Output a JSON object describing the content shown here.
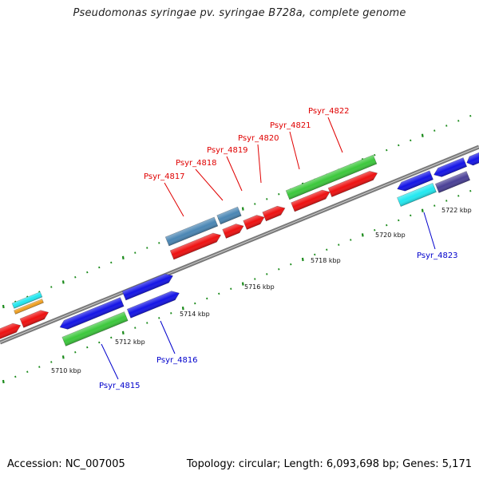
{
  "title": "Pseudomonas syringae pv. syringae B728a, complete genome",
  "footer": {
    "accession": "Accession: NC_007005",
    "summary": "Topology: circular; Length: 6,093,698 bp; Genes: 5,171"
  },
  "colors": {
    "background": "#ffffff",
    "backbone": "#8a8a8a",
    "upper_label": "#e00000",
    "lower_label": "#0000cc",
    "tick": "#1a8a1a",
    "red": "#ee1111",
    "blue": "#1414e6",
    "green": "#3cc83c",
    "steelblue": "#4a86b4",
    "cyan": "#22e8f0",
    "orange": "#f0a020",
    "purple": "#4a4096"
  },
  "scale_labels": [
    "5710 kbp",
    "5712 kbp",
    "5714 kbp",
    "5716 kbp",
    "5718 kbp",
    "5720 kbp",
    "5722 kbp"
  ],
  "upper_labels": [
    "Psyr_4817",
    "Psyr_4818",
    "Psyr_4819",
    "Psyr_4820",
    "Psyr_4821",
    "Psyr_4822"
  ],
  "lower_labels": [
    "Psyr_4815",
    "Psyr_4816",
    "Psyr_4823"
  ]
}
